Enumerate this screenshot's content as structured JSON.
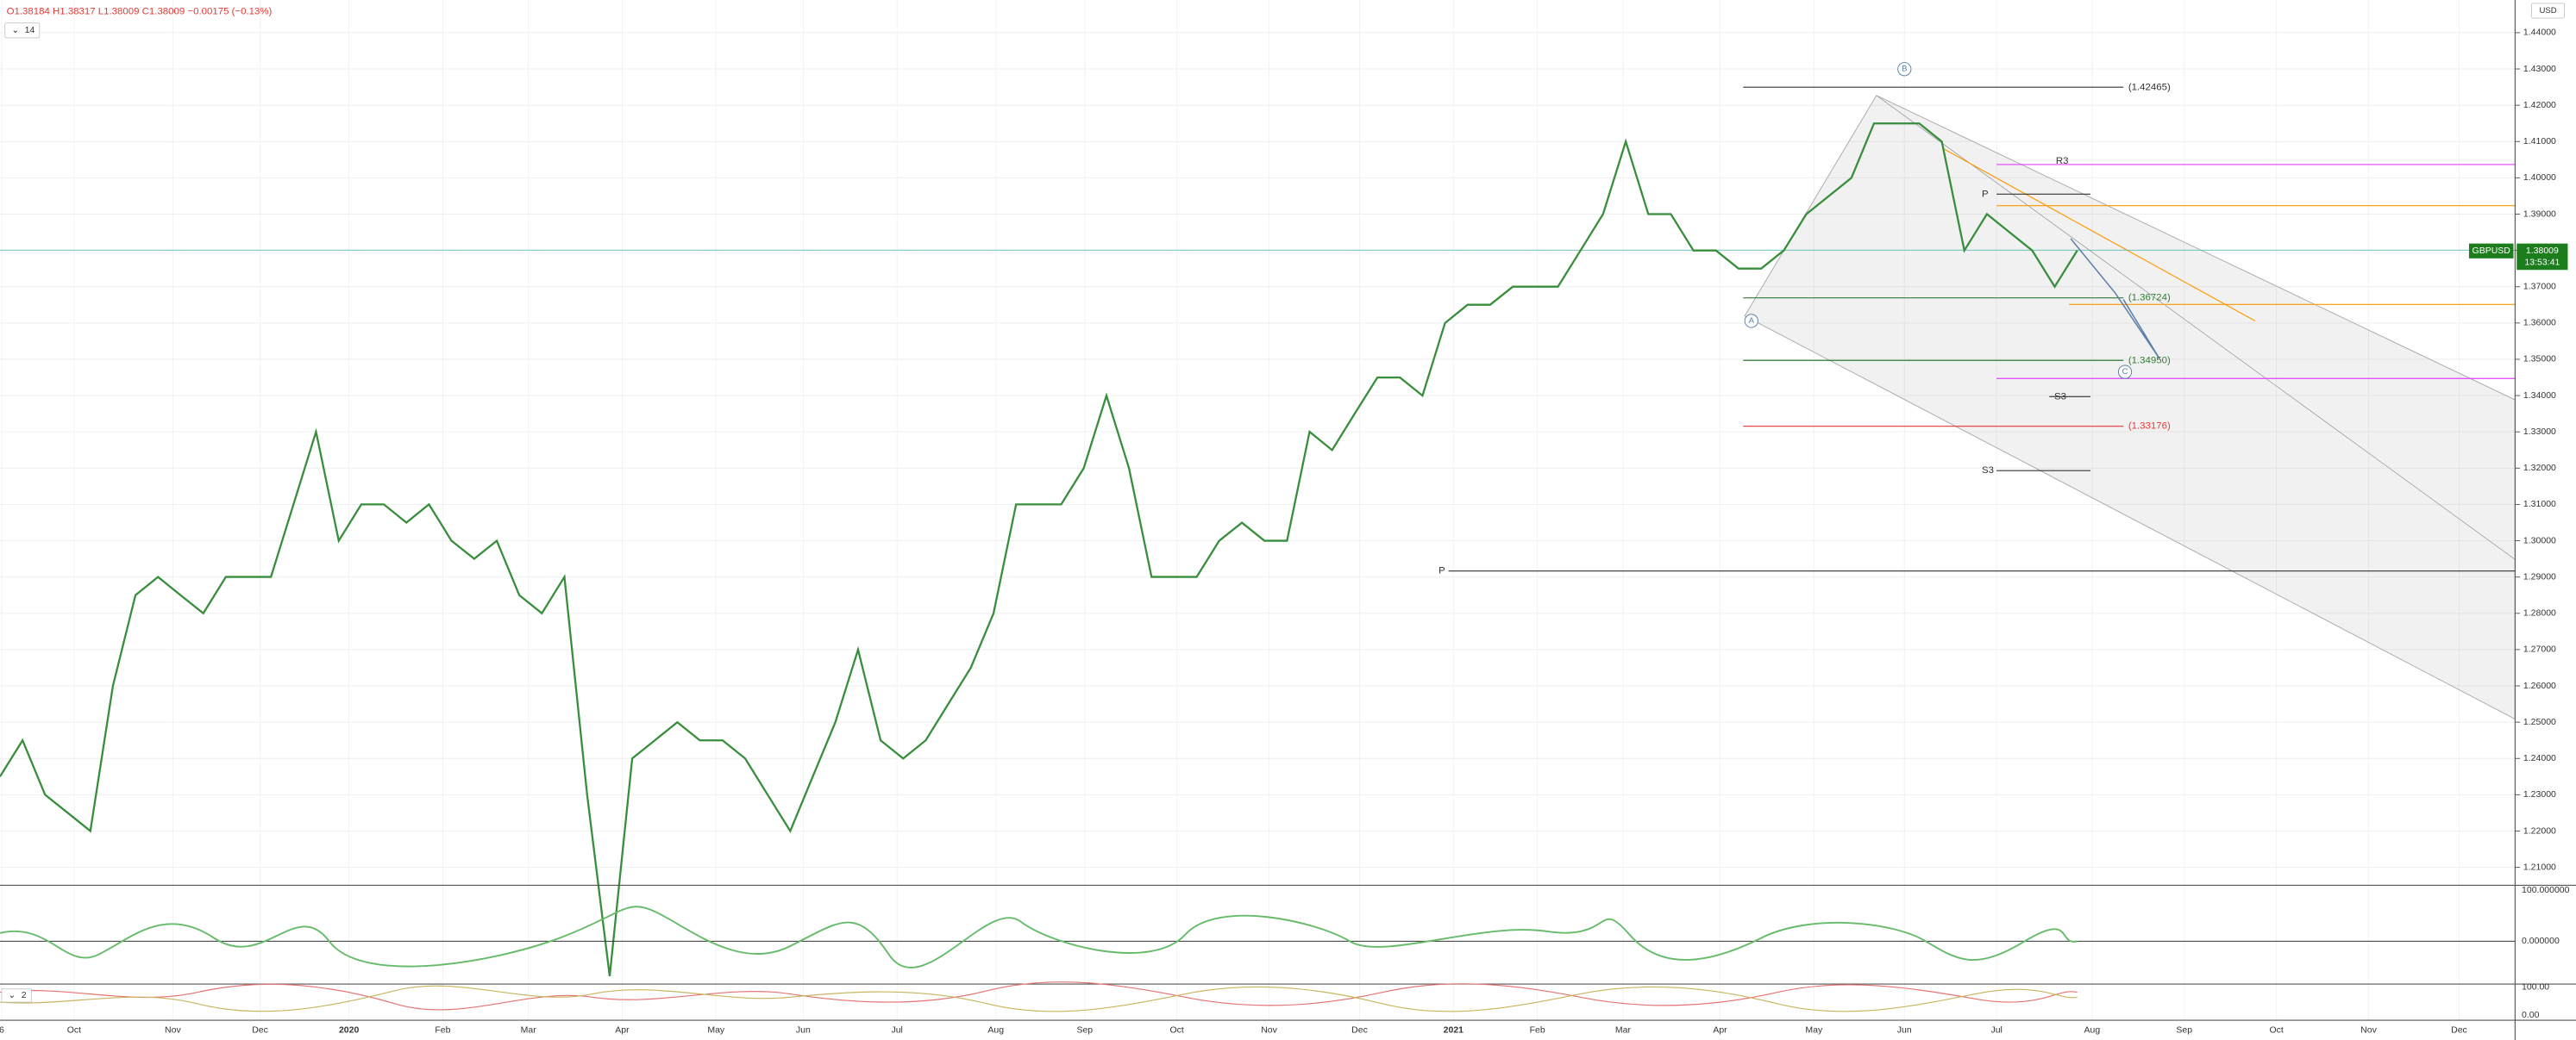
{
  "header": {
    "ohlc": "O1.38184 H1.38317 L1.38009 C1.38009 −0.00175 (−0.13%)",
    "indicator_count": "14",
    "currency": "USD"
  },
  "symbol_tag": {
    "symbol": "GBPUSD",
    "price": "1.38009",
    "countdown": "13:53:41"
  },
  "chart_data": {
    "type": "line",
    "series": [
      {
        "name": "GBPUSD",
        "color": "#388e3c",
        "values": [
          1.235,
          1.245,
          1.23,
          1.225,
          1.22,
          1.26,
          1.285,
          1.29,
          1.285,
          1.28,
          1.29,
          1.29,
          1.29,
          1.31,
          1.33,
          1.3,
          1.31,
          1.31,
          1.305,
          1.31,
          1.3,
          1.295,
          1.3,
          1.285,
          1.28,
          1.29,
          1.23,
          1.18,
          1.24,
          1.245,
          1.25,
          1.245,
          1.245,
          1.24,
          1.23,
          1.22,
          1.235,
          1.25,
          1.27,
          1.245,
          1.24,
          1.245,
          1.255,
          1.265,
          1.28,
          1.31,
          1.31,
          1.31,
          1.32,
          1.34,
          1.32,
          1.29,
          1.29,
          1.29,
          1.3,
          1.305,
          1.3,
          1.3,
          1.33,
          1.325,
          1.335,
          1.345,
          1.345,
          1.34,
          1.36,
          1.365,
          1.365,
          1.37,
          1.37,
          1.37,
          1.38,
          1.39,
          1.41,
          1.39,
          1.39,
          1.38,
          1.38,
          1.375,
          1.375,
          1.38,
          1.39,
          1.395,
          1.4,
          1.415,
          1.415,
          1.415,
          1.41,
          1.38,
          1.39,
          1.385,
          1.38,
          1.37,
          1.38
        ]
      }
    ],
    "time_labels": [
      "6",
      "Oct",
      "Nov",
      "Dec",
      "2020",
      "Feb",
      "Mar",
      "Apr",
      "May",
      "Jun",
      "Jul",
      "Aug",
      "Sep",
      "Oct",
      "Nov",
      "Dec",
      "2021",
      "Feb",
      "Mar",
      "Apr",
      "May",
      "Jun",
      "Jul",
      "Aug",
      "Sep",
      "Oct",
      "Nov",
      "Dec"
    ],
    "ylim": [
      1.2055,
      1.449
    ],
    "yticks": [
      {
        "value": 1.44,
        "label": "1.44000"
      },
      {
        "value": 1.43,
        "label": "1.43000"
      },
      {
        "value": 1.42,
        "label": "1.42000"
      },
      {
        "value": 1.41,
        "label": "1.41000"
      },
      {
        "value": 1.4,
        "label": "1.40000"
      },
      {
        "value": 1.39,
        "label": "1.39000"
      },
      {
        "value": 1.38,
        "label": "1.38000"
      },
      {
        "value": 1.37,
        "label": "1.37000"
      },
      {
        "value": 1.36,
        "label": "1.36000"
      },
      {
        "value": 1.35,
        "label": "1.35000"
      },
      {
        "value": 1.34,
        "label": "1.34000"
      },
      {
        "value": 1.33,
        "label": "1.33000"
      },
      {
        "value": 1.32,
        "label": "1.32000"
      },
      {
        "value": 1.31,
        "label": "1.31000"
      },
      {
        "value": 1.3,
        "label": "1.30000"
      },
      {
        "value": 1.29,
        "label": "1.29000"
      },
      {
        "value": 1.28,
        "label": "1.28000"
      },
      {
        "value": 1.27,
        "label": "1.27000"
      },
      {
        "value": 1.26,
        "label": "1.26000"
      },
      {
        "value": 1.25,
        "label": "1.25000"
      },
      {
        "value": 1.24,
        "label": "1.24000"
      },
      {
        "value": 1.23,
        "label": "1.23000"
      },
      {
        "value": 1.22,
        "label": "1.22000"
      },
      {
        "value": 1.21,
        "label": "1.21000"
      }
    ],
    "grid": true
  },
  "annotations": {
    "wave_labels": [
      "B",
      "A",
      "C"
    ],
    "levels": [
      "(1.42465)",
      "R3",
      "P",
      "(1.36724)",
      "(1.34950)",
      "S3",
      "(1.33176)",
      "S3",
      "P"
    ]
  },
  "oscillator": {
    "ticks": [
      "100.000000",
      "0.000000"
    ]
  },
  "oscillator2": {
    "ticks": [
      "100.00",
      "0.00"
    ],
    "setting": "2"
  }
}
